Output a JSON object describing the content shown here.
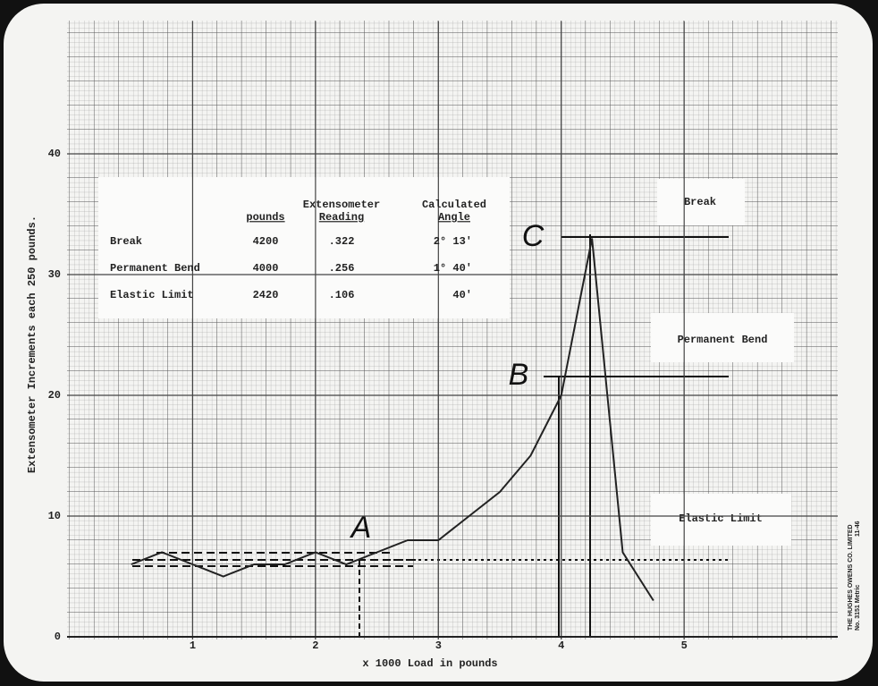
{
  "chart_data": {
    "type": "line",
    "x_label": "x 1000 Load in pounds",
    "y_label": "Extensometer Increments each 250 pounds.",
    "x": [
      0.5,
      0.75,
      1.0,
      1.25,
      1.5,
      1.75,
      2.0,
      2.25,
      2.5,
      2.75,
      3.0,
      3.25,
      3.5,
      3.75,
      4.0,
      4.25,
      4.5,
      4.75
    ],
    "values": [
      6,
      7,
      6,
      5,
      6,
      6,
      7,
      6,
      7,
      8,
      8,
      10,
      12,
      15,
      20,
      33,
      7,
      3
    ],
    "color": "#222222",
    "xlim": [
      0,
      6.25
    ],
    "xticks": [
      1,
      2,
      3,
      4,
      5
    ],
    "ylim": [
      0,
      51
    ],
    "yticks": [
      0,
      10,
      20,
      30,
      40
    ],
    "grid": true,
    "annotations": {
      "A": "A",
      "B": "B",
      "C": "C",
      "break": "Break",
      "permanent_bend": "Permanent Bend",
      "elastic_limit": "Elastic Limit"
    }
  },
  "table": {
    "columns": [
      [
        "pounds"
      ],
      [
        "Extensometer",
        "Reading"
      ],
      [
        "Calculated",
        "Angle"
      ]
    ],
    "rows": [
      [
        "Break",
        "4200",
        ".322",
        "2° 13'"
      ],
      [
        "Permanent Bend",
        "4000",
        ".256",
        "1° 40'"
      ],
      [
        "Elastic Limit",
        "2420",
        ".106",
        "40'"
      ]
    ]
  },
  "imprint": [
    "THE HUGHES OWENS CO. LIMITED",
    "No. 3151  Metric",
    "11-46"
  ]
}
